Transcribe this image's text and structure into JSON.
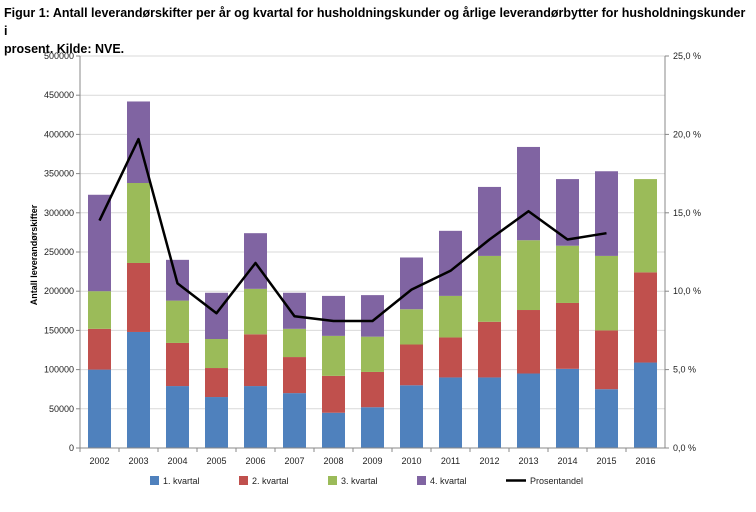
{
  "caption": {
    "line1": "Figur 1: Antall leverandørskifter per år og kvartal for husholdningskunder og årlige leverandørbytter for husholdningskunder i",
    "line2": "prosent. Kilde: NVE."
  },
  "chart_data": {
    "type": "bar",
    "stacked": true,
    "categories": [
      "2002",
      "2003",
      "2004",
      "2005",
      "2006",
      "2007",
      "2008",
      "2009",
      "2010",
      "2011",
      "2012",
      "2013",
      "2014",
      "2015",
      "2016"
    ],
    "series": [
      {
        "name": "1. kvartal",
        "color": "#4F81BD",
        "values": [
          100000,
          148000,
          79000,
          65000,
          79000,
          70000,
          45000,
          52000,
          80000,
          90000,
          90000,
          95000,
          101000,
          75000,
          109000
        ]
      },
      {
        "name": "2. kvartal",
        "color": "#C0504D",
        "values": [
          52000,
          88000,
          55000,
          37000,
          66000,
          46000,
          47000,
          45000,
          52000,
          51000,
          71000,
          81000,
          84000,
          75000,
          115000
        ]
      },
      {
        "name": "3. kvartal",
        "color": "#9BBB59",
        "values": [
          48000,
          102000,
          54000,
          37000,
          58000,
          36000,
          51000,
          45000,
          45000,
          53000,
          84000,
          89000,
          73000,
          95000,
          119000
        ]
      },
      {
        "name": "4. kvartal",
        "color": "#8064A2",
        "values": [
          123000,
          104000,
          52000,
          59000,
          71000,
          46000,
          51000,
          53000,
          66000,
          83000,
          88000,
          119000,
          85000,
          108000,
          0
        ]
      }
    ],
    "line_series": {
      "name": "Prosentandel",
      "color": "#000000",
      "axis": "right",
      "values": [
        14.5,
        19.7,
        10.5,
        8.6,
        11.8,
        8.4,
        8.1,
        8.1,
        10.1,
        11.3,
        13.3,
        15.1,
        13.3,
        13.7,
        null
      ]
    },
    "ylabel": "Antall leverandørskifter",
    "ylim": [
      0,
      500000
    ],
    "y_ticks": [
      "0",
      "50000",
      "100000",
      "150000",
      "200000",
      "250000",
      "300000",
      "350000",
      "400000",
      "450000",
      "500000"
    ],
    "y2lim": [
      0,
      25
    ],
    "y2_ticks": [
      "0,0 %",
      "5,0 %",
      "10,0 %",
      "15,0 %",
      "20,0 %",
      "25,0 %"
    ],
    "grid": true,
    "legend_position": "bottom"
  }
}
